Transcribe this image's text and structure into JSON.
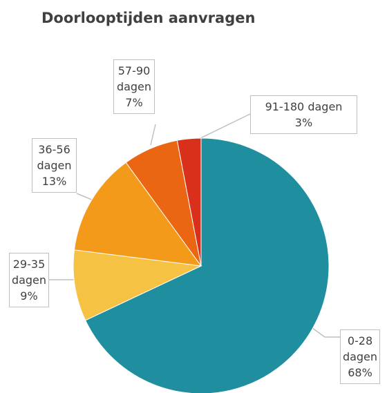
{
  "chart_data": {
    "type": "pie",
    "title": "Doorlooptijden aanvragen",
    "categories": [
      "0-28 dagen",
      "29-35 dagen",
      "36-56 dagen",
      "57-90 dagen",
      "91-180 dagen"
    ],
    "values": [
      68,
      9,
      13,
      7,
      3
    ],
    "value_labels": [
      "68%",
      "9%",
      "13%",
      "7%",
      "3%"
    ],
    "colors": [
      "#1f8fa0",
      "#f5c243",
      "#f39a1a",
      "#ea6613",
      "#d9301c"
    ]
  }
}
